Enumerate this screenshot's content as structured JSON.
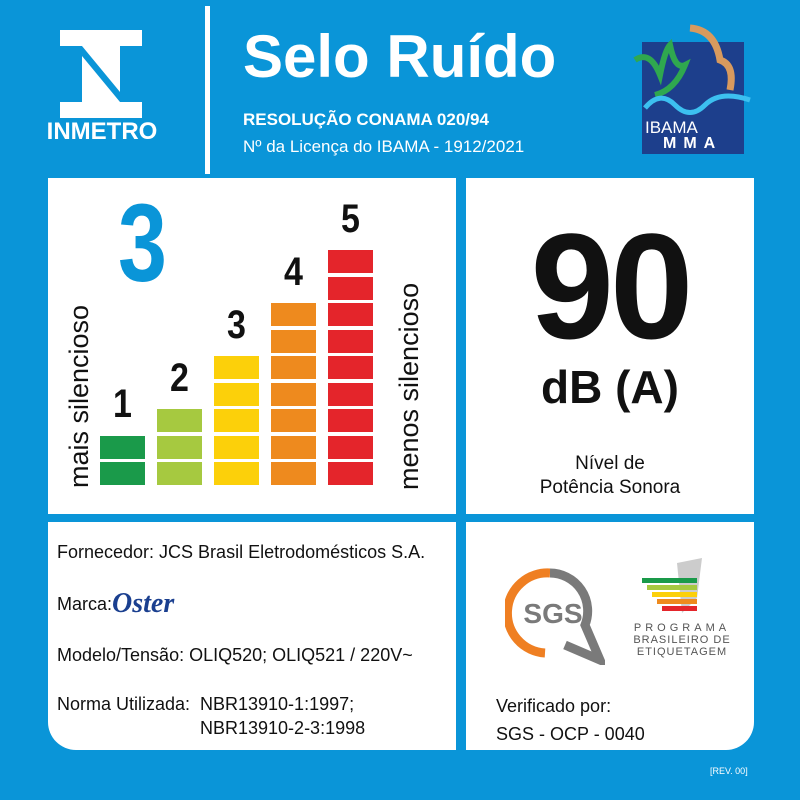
{
  "header": {
    "brand": "INMETRO",
    "title": "Selo Ruído",
    "resolution": "RESOLUÇÃO CONAMA 020/94",
    "license": "Nº da Licença do IBAMA - 1912/2021",
    "ibama": "IBAMA",
    "mma": "MMA"
  },
  "rating": {
    "current_level": "3",
    "left_label": "mais silencioso",
    "right_label": "menos silencioso",
    "levels": [
      {
        "label": "1",
        "segments": 2,
        "color": "#1a9a4a"
      },
      {
        "label": "2",
        "segments": 3,
        "color": "#a6c940"
      },
      {
        "label": "3",
        "segments": 5,
        "color": "#fcd00a"
      },
      {
        "label": "4",
        "segments": 7,
        "color": "#ee8a1e"
      },
      {
        "label": "5",
        "segments": 9,
        "color": "#e4252b"
      }
    ]
  },
  "noise": {
    "value": "90",
    "unit": "dB (A)",
    "caption_1": "Nível de",
    "caption_2": "Potência Sonora"
  },
  "info": {
    "supplier": "Fornecedor: JCS Brasil Eletrodomésticos S.A.",
    "brand_label": "Marca:",
    "brand_logo": "Oster",
    "model": "Modelo/Tensão: OLIQ520; OLIQ521 / 220V~",
    "norm_label": "Norma Utilizada:",
    "norm_1": "NBR13910-1:1997;",
    "norm_2": "NBR13910-2-3:1998"
  },
  "verification": {
    "sgs_logo": "SGS",
    "pbe_1": "PROGRAMA",
    "pbe_2": "BRASILEIRO DE",
    "pbe_3": "ETIQUETAGEM",
    "verified_by": "Verificado por:",
    "body": "SGS - OCP - 0040"
  },
  "revision": "[REV. 00]",
  "colors": {
    "background": "#0a95d8"
  }
}
